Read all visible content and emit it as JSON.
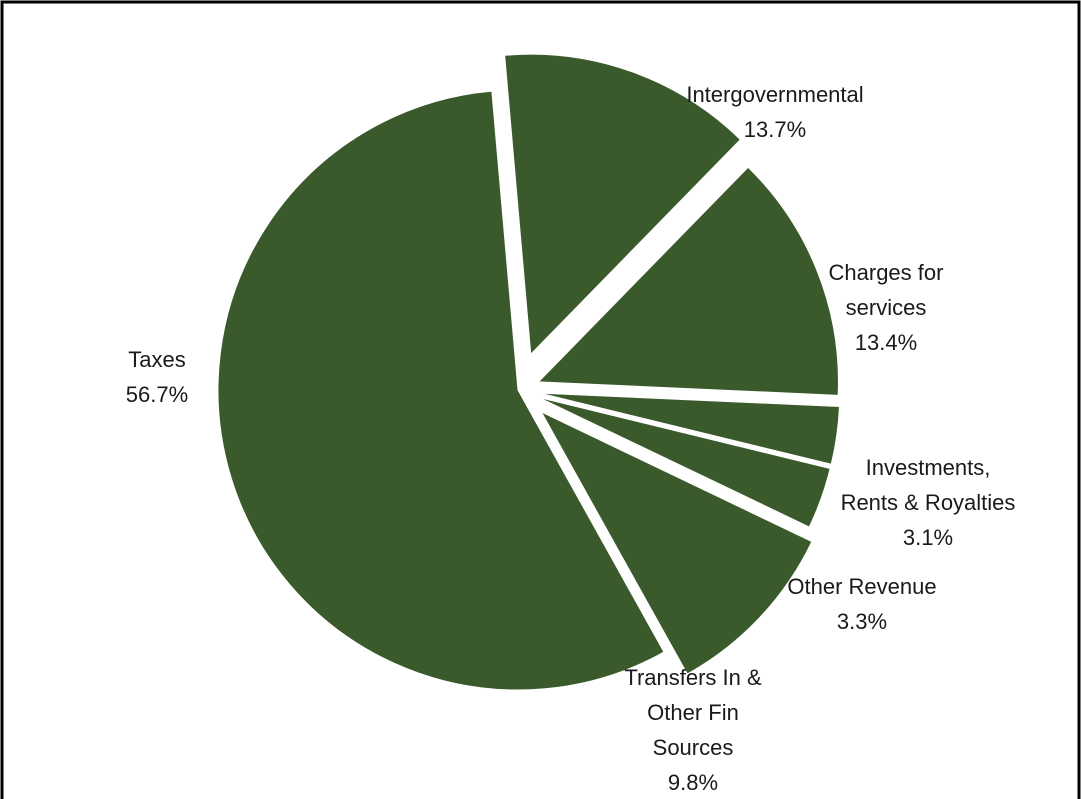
{
  "chart_data": {
    "type": "pie",
    "exploded": true,
    "slice_color": "#3b5a2b",
    "border_color": "#000000",
    "background": "#ffffff",
    "slices": [
      {
        "name": "Intergovernmental",
        "label_lines": [
          "Intergovernmental"
        ],
        "value": 13.7,
        "value_label": "13.7%"
      },
      {
        "name": "Charges for services",
        "label_lines": [
          "Charges for",
          "services"
        ],
        "value": 13.4,
        "value_label": "13.4%"
      },
      {
        "name": "Investments, Rents & Royalties",
        "label_lines": [
          "Investments,",
          "Rents & Royalties"
        ],
        "value": 3.1,
        "value_label": "3.1%"
      },
      {
        "name": "Other Revenue",
        "label_lines": [
          "Other Revenue"
        ],
        "value": 3.3,
        "value_label": "3.3%"
      },
      {
        "name": "Transfers In & Other Fin Sources",
        "label_lines": [
          "Transfers In &",
          "Other Fin",
          "Sources"
        ],
        "value": 9.8,
        "value_label": "9.8%"
      },
      {
        "name": "Taxes",
        "label_lines": [
          "Taxes"
        ],
        "value": 56.7,
        "value_label": "56.7%"
      }
    ]
  }
}
